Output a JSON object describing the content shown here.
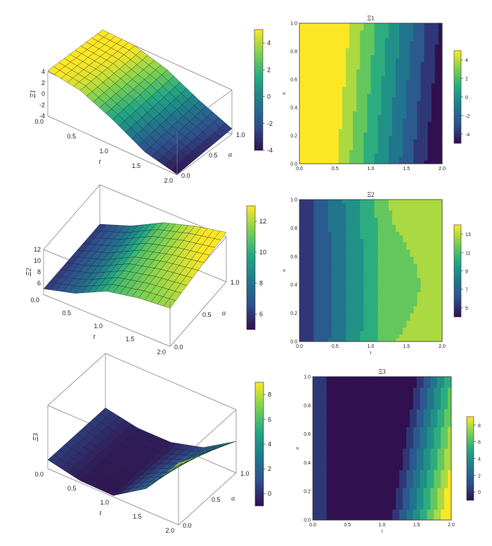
{
  "colors": {
    "viridis": [
      "#30104e",
      "#2f4f8f",
      "#1f7a8c",
      "#22a884",
      "#7ad151",
      "#fde725"
    ],
    "mesh_line": "#1a1a1a",
    "box_line": "#777777"
  },
  "chart_data": [
    {
      "type": "surface",
      "id": "xi1-surface",
      "zlabel": "Ξ1",
      "xlabel": "t",
      "ylabel": "α",
      "x_range": [
        0.0,
        2.0
      ],
      "y_range": [
        0.0,
        1.0
      ],
      "z_range": [
        -4,
        4
      ],
      "x_ticks": [
        "0.0",
        "0.5",
        "1.0",
        "1.5",
        "2.0"
      ],
      "y_ticks": [
        "0.0",
        "0.5",
        "1.0"
      ],
      "z_ticks": [
        "4",
        "2",
        "0",
        "-2",
        "-4"
      ],
      "colorbar": {
        "range": [
          -4,
          5
        ],
        "ticks": [
          "4",
          "2",
          "0",
          "-2",
          "-4"
        ]
      },
      "grid": {
        "nx": 20,
        "ny": 10
      },
      "function_samples": {
        "t": [
          0.0,
          0.5,
          1.0,
          1.5,
          2.0
        ],
        "alpha_0": [
          4.2,
          3.3,
          0.7,
          -2.5,
          -3.9
        ],
        "alpha_1": [
          4.2,
          4.0,
          2.3,
          -0.6,
          -3.0
        ]
      }
    },
    {
      "type": "contour",
      "id": "xi1-contour",
      "title": "Ξ1",
      "xlabel": "",
      "ylabel": "α",
      "x_range": [
        0.0,
        2.0
      ],
      "y_range": [
        0.0,
        1.0
      ],
      "x_ticks": [
        "0.0",
        "0.5",
        "1.0",
        "1.5",
        "2.0"
      ],
      "y_ticks": [
        "0.0",
        "0.2",
        "0.4",
        "0.6",
        "0.8",
        "1.0"
      ],
      "levels": 9,
      "colorbar": {
        "range": [
          -5,
          5
        ],
        "ticks": [
          "4",
          "2",
          "0",
          "-2",
          "-4"
        ]
      }
    },
    {
      "type": "surface",
      "id": "xi2-surface",
      "zlabel": "Ξ2",
      "xlabel": "t",
      "ylabel": "α",
      "x_range": [
        0.0,
        2.0
      ],
      "y_range": [
        0.0,
        1.0
      ],
      "z_range": [
        4,
        12
      ],
      "x_ticks": [
        "0.0",
        "0.5",
        "1.0",
        "1.5",
        "2.0"
      ],
      "y_ticks": [
        "0.0",
        "0.5",
        "1.0"
      ],
      "z_ticks": [
        "12",
        "10",
        "8",
        "6"
      ],
      "colorbar": {
        "range": [
          5,
          13
        ],
        "ticks": [
          "12",
          "10",
          "8",
          "6"
        ]
      },
      "grid": {
        "nx": 20,
        "ny": 10
      },
      "function_samples": {
        "t": [
          0.0,
          0.5,
          1.0,
          1.5,
          2.0
        ],
        "alpha_0": [
          5.0,
          6.5,
          9.2,
          10.3,
          10.8
        ],
        "alpha_1": [
          5.0,
          7.0,
          9.9,
          11.6,
          12.8
        ]
      }
    },
    {
      "type": "contour",
      "id": "xi2-contour",
      "title": "Ξ2",
      "xlabel": "t",
      "ylabel": "α",
      "x_range": [
        0.0,
        2.0
      ],
      "y_range": [
        0.0,
        1.0
      ],
      "x_ticks": [
        "0.0",
        "0.5",
        "1.0",
        "1.5",
        "2.0"
      ],
      "y_ticks": [
        "0.0",
        "0.2",
        "0.4",
        "0.6",
        "0.8",
        "1.0"
      ],
      "levels": 9,
      "colorbar": {
        "range": [
          4,
          14
        ],
        "ticks": [
          "13",
          "11",
          "9",
          "7",
          "5"
        ]
      }
    },
    {
      "type": "surface",
      "id": "xi3-surface",
      "zlabel": "Ξ3",
      "xlabel": "t",
      "ylabel": "α",
      "x_range": [
        0.0,
        2.0
      ],
      "y_range": [
        0.0,
        1.0
      ],
      "z_range": [
        -1,
        9
      ],
      "x_ticks": [
        "0.0",
        "0.5",
        "1.0",
        "1.5",
        "2.0"
      ],
      "y_ticks": [
        "0.0",
        "0.5",
        "1.0"
      ],
      "z_ticks": [],
      "colorbar": {
        "range": [
          -1,
          9
        ],
        "ticks": [
          "8",
          "6",
          "4",
          "2",
          "0"
        ]
      },
      "grid": {
        "nx": 20,
        "ny": 10
      },
      "function_samples": {
        "t": [
          0.0,
          0.5,
          1.0,
          1.5,
          2.0
        ],
        "alpha_0": [
          0.4,
          -0.7,
          -0.8,
          2.5,
          8.8
        ],
        "alpha_1": [
          0.4,
          -0.6,
          -0.6,
          0.8,
          4.0
        ]
      }
    },
    {
      "type": "contour",
      "id": "xi3-contour",
      "title": "Ξ3",
      "xlabel": "t",
      "ylabel": "α",
      "x_range": [
        0.0,
        2.0
      ],
      "y_range": [
        0.0,
        1.0
      ],
      "x_ticks": [
        "0.0",
        "0.5",
        "1.0",
        "1.5",
        "2.0"
      ],
      "y_ticks": [
        "0.0",
        "0.2",
        "0.4",
        "0.6",
        "0.8",
        "1.0"
      ],
      "levels": 9,
      "colorbar": {
        "range": [
          -1,
          9
        ],
        "ticks": [
          "8",
          "6",
          "4",
          "2",
          "0"
        ]
      }
    }
  ]
}
